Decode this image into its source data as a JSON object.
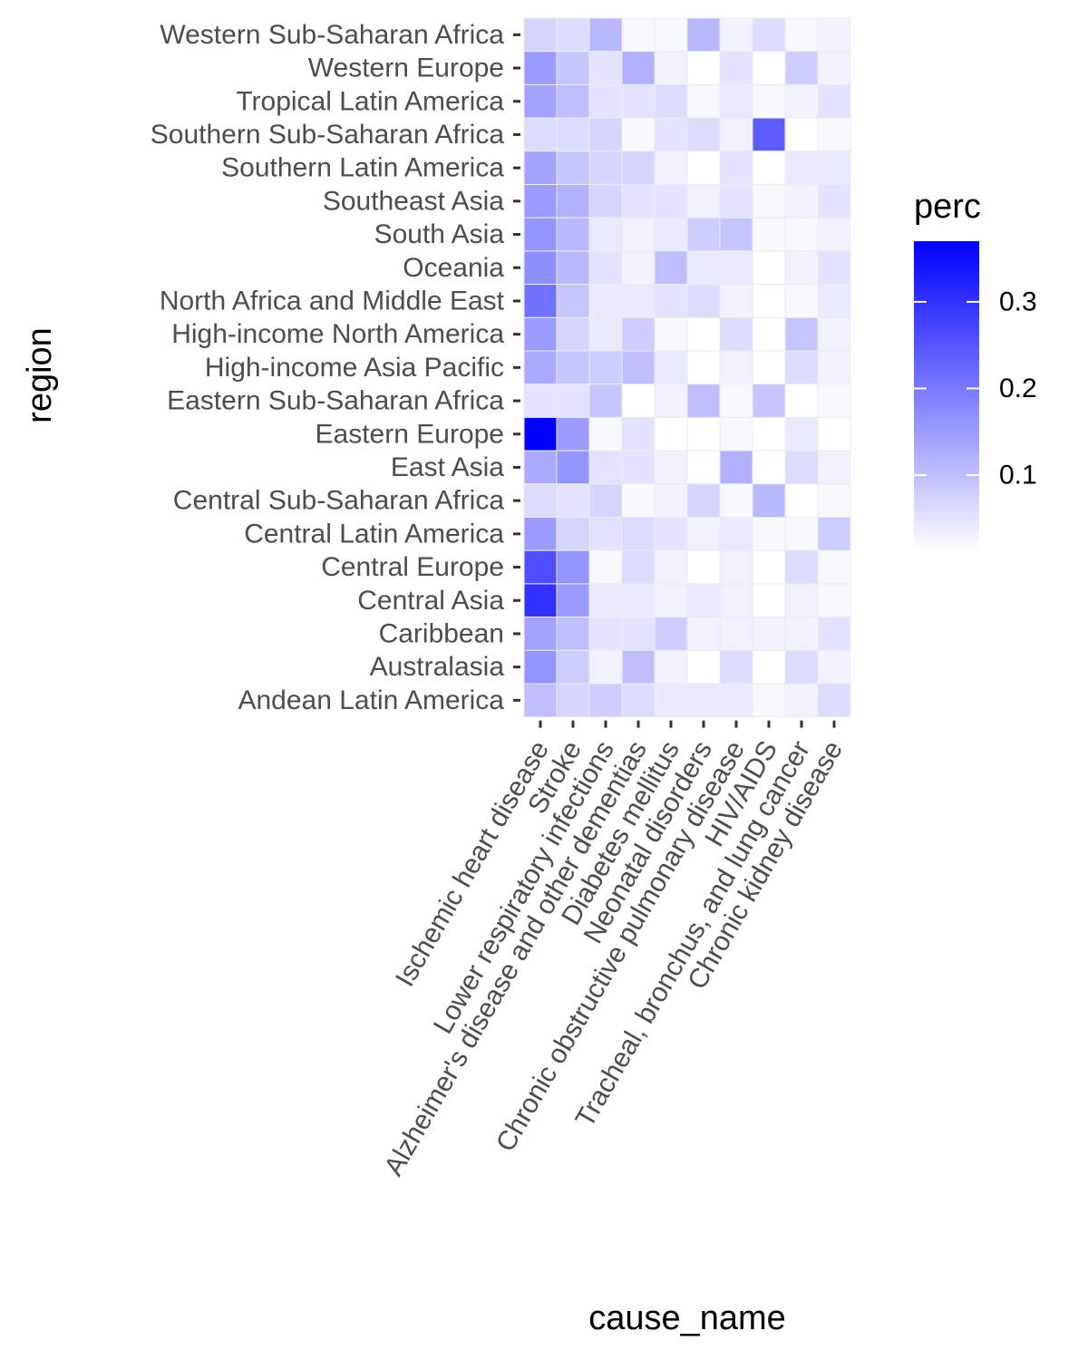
{
  "chart_data": {
    "type": "heatmap",
    "xlabel": "cause_name",
    "ylabel": "region",
    "legend": {
      "title": "perc",
      "placement": "right",
      "ticks": [
        0.1,
        0.2,
        0.3
      ],
      "tick_labels": [
        "0.1",
        "0.2",
        "0.3"
      ],
      "min": 0.01,
      "max": 0.37,
      "low_color": "#ffffff",
      "high_color": "#0000ff"
    },
    "grid": true,
    "x_categories": [
      "Ischemic heart disease",
      "Stroke",
      "Lower respiratory infections",
      "Alzheimer's disease and other dementias",
      "Diabetes mellitus",
      "Neonatal disorders",
      "Chronic obstructive pulmonary disease",
      "HIV/AIDS",
      "Tracheal, bronchus, and lung cancer",
      "Chronic kidney disease"
    ],
    "y_categories": [
      "Western Sub-Saharan Africa",
      "Western Europe",
      "Tropical Latin America",
      "Southern Sub-Saharan Africa",
      "Southern Latin America",
      "Southeast Asia",
      "South Asia",
      "Oceania",
      "North Africa and Middle East",
      "High-income North America",
      "High-income Asia Pacific",
      "Eastern Sub-Saharan Africa",
      "Eastern Europe",
      "East Asia",
      "Central Sub-Saharan Africa",
      "Central Latin America",
      "Central Europe",
      "Central Asia",
      "Caribbean",
      "Australasia",
      "Andean Latin America"
    ],
    "values": [
      [
        0.07,
        0.06,
        0.11,
        0.02,
        0.02,
        0.11,
        0.03,
        0.06,
        0.02,
        0.03
      ],
      [
        0.15,
        0.09,
        0.05,
        0.12,
        0.03,
        0.01,
        0.05,
        0.01,
        0.08,
        0.03
      ],
      [
        0.14,
        0.1,
        0.05,
        0.05,
        0.06,
        0.02,
        0.04,
        0.02,
        0.03,
        0.05
      ],
      [
        0.06,
        0.06,
        0.07,
        0.02,
        0.05,
        0.06,
        0.03,
        0.24,
        0.01,
        0.02
      ],
      [
        0.14,
        0.09,
        0.07,
        0.07,
        0.03,
        0.01,
        0.05,
        0.01,
        0.04,
        0.04
      ],
      [
        0.15,
        0.12,
        0.07,
        0.05,
        0.05,
        0.03,
        0.05,
        0.02,
        0.03,
        0.05
      ],
      [
        0.16,
        0.11,
        0.04,
        0.03,
        0.04,
        0.08,
        0.09,
        0.02,
        0.02,
        0.03
      ],
      [
        0.17,
        0.11,
        0.05,
        0.03,
        0.1,
        0.04,
        0.04,
        0.01,
        0.03,
        0.05
      ],
      [
        0.21,
        0.09,
        0.04,
        0.04,
        0.05,
        0.06,
        0.03,
        0.01,
        0.02,
        0.04
      ],
      [
        0.15,
        0.07,
        0.04,
        0.08,
        0.02,
        0.01,
        0.06,
        0.01,
        0.09,
        0.03
      ],
      [
        0.13,
        0.09,
        0.08,
        0.1,
        0.04,
        0.01,
        0.03,
        0.01,
        0.06,
        0.03
      ],
      [
        0.05,
        0.05,
        0.09,
        0.01,
        0.03,
        0.1,
        0.02,
        0.09,
        0.01,
        0.02
      ],
      [
        0.37,
        0.15,
        0.02,
        0.05,
        0.01,
        0.01,
        0.02,
        0.01,
        0.04,
        0.01
      ],
      [
        0.13,
        0.16,
        0.05,
        0.05,
        0.03,
        0.01,
        0.12,
        0.01,
        0.06,
        0.03
      ],
      [
        0.06,
        0.05,
        0.07,
        0.02,
        0.03,
        0.07,
        0.02,
        0.11,
        0.01,
        0.02
      ],
      [
        0.15,
        0.07,
        0.05,
        0.06,
        0.05,
        0.03,
        0.04,
        0.02,
        0.02,
        0.08
      ],
      [
        0.26,
        0.16,
        0.02,
        0.06,
        0.03,
        0.01,
        0.03,
        0.01,
        0.06,
        0.02
      ],
      [
        0.3,
        0.15,
        0.04,
        0.04,
        0.03,
        0.04,
        0.03,
        0.01,
        0.03,
        0.02
      ],
      [
        0.14,
        0.1,
        0.05,
        0.05,
        0.08,
        0.03,
        0.03,
        0.03,
        0.03,
        0.05
      ],
      [
        0.16,
        0.08,
        0.03,
        0.1,
        0.03,
        0.01,
        0.06,
        0.01,
        0.06,
        0.03
      ],
      [
        0.1,
        0.07,
        0.08,
        0.06,
        0.04,
        0.04,
        0.04,
        0.02,
        0.03,
        0.06
      ]
    ]
  }
}
